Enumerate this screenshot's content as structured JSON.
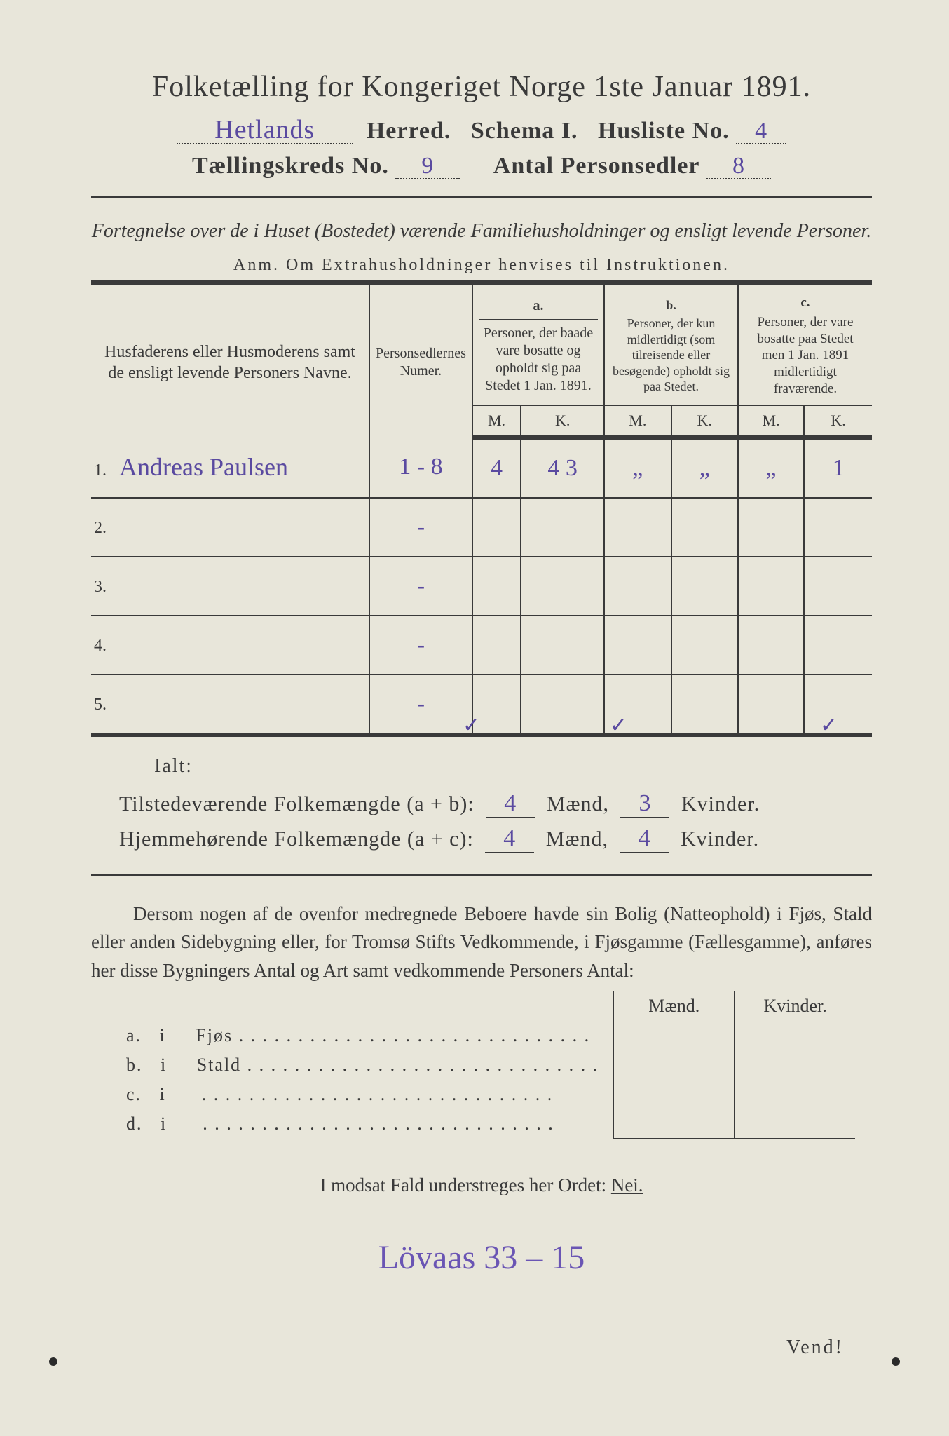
{
  "title": "Folketælling for Kongeriget Norge 1ste Januar 1891.",
  "line2": {
    "herred_hw": "Hetlands",
    "herred_label": "Herred.",
    "schema_label": "Schema I.",
    "husliste_label": "Husliste No.",
    "husliste_no": "4"
  },
  "line3": {
    "kreds_label": "Tællingskreds No.",
    "kreds_no": "9",
    "antal_label": "Antal Personsedler",
    "antal_no": "8"
  },
  "subtitle": "Fortegnelse over de i Huset (Bostedet) værende Familiehusholdninger og ensligt levende Personer.",
  "anm": "Anm.  Om Extrahusholdninger henvises til Instruktionen.",
  "headers": {
    "col1": "Husfaderens eller Husmoderens samt de ensligt levende Personers Navne.",
    "col2": "Personsedlernes Numer.",
    "a_label": "a.",
    "a_text": "Personer, der baade vare bosatte og opholdt sig paa Stedet 1 Jan. 1891.",
    "b_label": "b.",
    "b_text": "Personer, der kun midlertidigt (som tilreisende eller besøgende) opholdt sig paa Stedet.",
    "c_label": "c.",
    "c_text": "Personer, der vare bosatte paa Stedet men 1 Jan. 1891 midlertidigt fraværende.",
    "M": "M.",
    "K": "K."
  },
  "rows": [
    {
      "n": "1.",
      "name": "Andreas Paulsen",
      "numer": "1 - 8",
      "aM": "4",
      "aK": "4 3",
      "bM": "„",
      "bK": "„",
      "cM": "„",
      "cK": "1"
    },
    {
      "n": "2.",
      "name": "",
      "numer": "-",
      "aM": "",
      "aK": "",
      "bM": "",
      "bK": "",
      "cM": "",
      "cK": ""
    },
    {
      "n": "3.",
      "name": "",
      "numer": "-",
      "aM": "",
      "aK": "",
      "bM": "",
      "bK": "",
      "cM": "",
      "cK": ""
    },
    {
      "n": "4.",
      "name": "",
      "numer": "-",
      "aM": "",
      "aK": "",
      "bM": "",
      "bK": "",
      "cM": "",
      "cK": ""
    },
    {
      "n": "5.",
      "name": "",
      "numer": "-",
      "aM": "",
      "aK": "",
      "bM": "",
      "bK": "",
      "cM": "",
      "cK": ""
    }
  ],
  "checks": {
    "aM": "✓",
    "bM": "✓",
    "cK": "✓"
  },
  "ialt": "Ialt:",
  "sum1": {
    "label": "Tilstedeværende Folkemængde (a + b):",
    "m": "4",
    "mlab": "Mænd,",
    "k": "3",
    "klab": "Kvinder."
  },
  "sum2": {
    "label": "Hjemmehørende Folkemængde (a + c):",
    "m": "4",
    "mlab": "Mænd,",
    "k": "4",
    "klab": "Kvinder."
  },
  "para": "Dersom nogen af de ovenfor medregnede Beboere havde sin Bolig (Natteophold) i Fjøs, Stald eller anden Sidebygning eller, for Tromsø Stifts Vedkommende, i Fjøsgamme (Fællesgamme), anføres her disse Bygningers Antal og Art samt vedkommende Personers Antal:",
  "fjos": {
    "mhead": "Mænd.",
    "khead": "Kvinder.",
    "rows": [
      {
        "a": "a.",
        "i": "i",
        "label": "Fjøs"
      },
      {
        "a": "b.",
        "i": "i",
        "label": "Stald"
      },
      {
        "a": "c.",
        "i": "i",
        "label": ""
      },
      {
        "a": "d.",
        "i": "i",
        "label": ""
      }
    ]
  },
  "nei": "I modsat Fald understreges her Ordet:",
  "nei_word": "Nei.",
  "bottom_hw": "Lövaas 33 – 15",
  "vend": "Vend!",
  "colors": {
    "paper": "#e8e6da",
    "ink": "#3a3a3a",
    "handwriting": "#5a4aa0"
  }
}
